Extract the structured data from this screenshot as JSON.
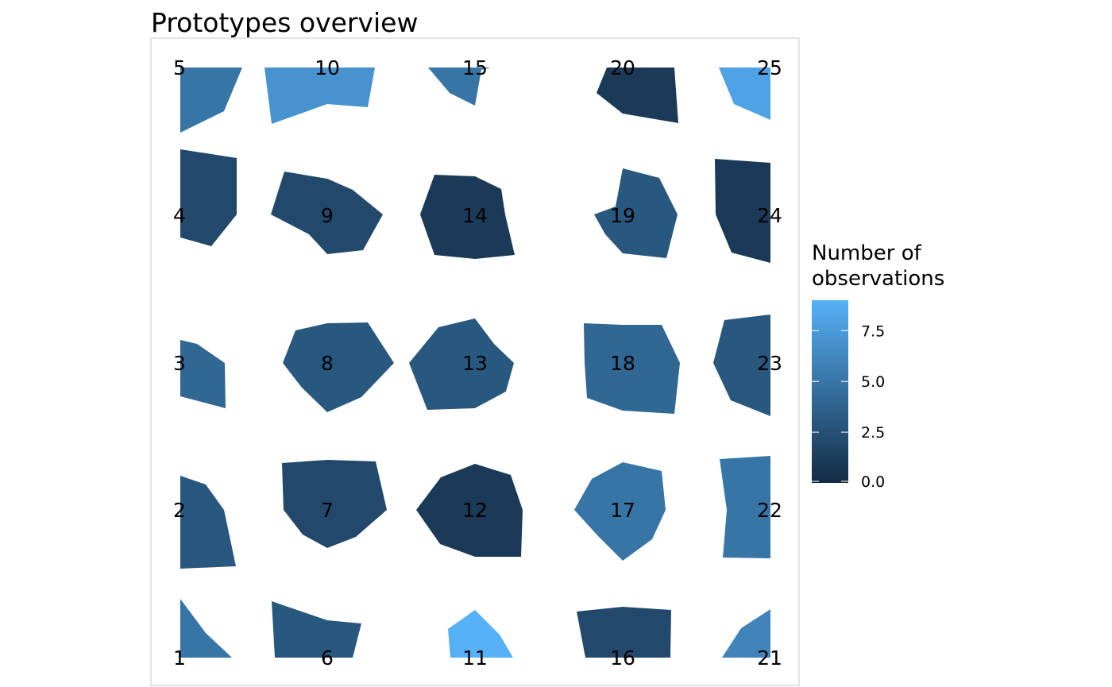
{
  "chart_data": {
    "type": "heatmap",
    "title": "Prototypes overview",
    "xlabel": "",
    "ylabel": "",
    "grid": false,
    "grid_layout": {
      "columns": 5,
      "rows": 5,
      "numbering": "column-major, bottom-to-top"
    },
    "cells": [
      {
        "id": "1",
        "count": 5
      },
      {
        "id": "2",
        "count": 3
      },
      {
        "id": "3",
        "count": 4
      },
      {
        "id": "4",
        "count": 2
      },
      {
        "id": "5",
        "count": 5
      },
      {
        "id": "6",
        "count": 3
      },
      {
        "id": "7",
        "count": 2
      },
      {
        "id": "8",
        "count": 3
      },
      {
        "id": "9",
        "count": 2
      },
      {
        "id": "10",
        "count": 7
      },
      {
        "id": "11",
        "count": 9
      },
      {
        "id": "12",
        "count": 1
      },
      {
        "id": "13",
        "count": 3
      },
      {
        "id": "14",
        "count": 1
      },
      {
        "id": "15",
        "count": 5
      },
      {
        "id": "16",
        "count": 2
      },
      {
        "id": "17",
        "count": 5
      },
      {
        "id": "18",
        "count": 4
      },
      {
        "id": "19",
        "count": 3
      },
      {
        "id": "20",
        "count": 1
      },
      {
        "id": "21",
        "count": 6
      },
      {
        "id": "22",
        "count": 5
      },
      {
        "id": "23",
        "count": 3
      },
      {
        "id": "24",
        "count": 1
      },
      {
        "id": "25",
        "count": 8
      }
    ],
    "legend": {
      "title_lines": [
        "Number of",
        "observations"
      ],
      "ticks": [
        "0.0",
        "2.5",
        "5.0",
        "7.5"
      ],
      "tick_values": [
        0,
        2.5,
        5,
        7.5
      ],
      "range": [
        0,
        9
      ],
      "placement": "right"
    },
    "colors": {
      "low": "#132B43",
      "high": "#56B1F7",
      "panel_border": "#c8c8c8"
    }
  }
}
